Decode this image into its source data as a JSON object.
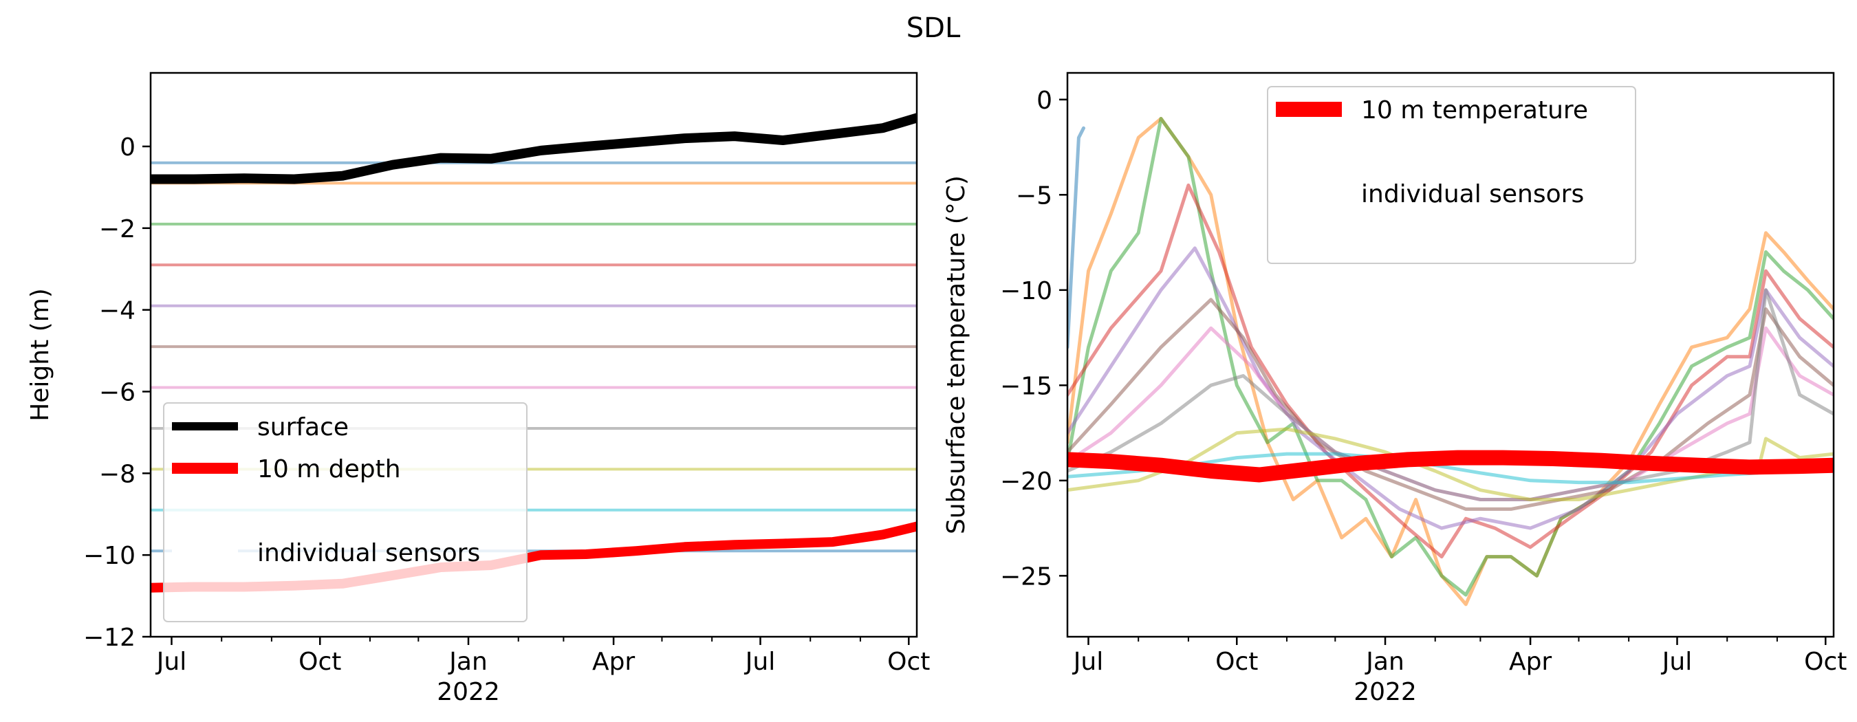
{
  "title": "SDL",
  "chart_data": [
    {
      "type": "line",
      "ylabel": "Height (m)",
      "xlabel": "",
      "x_axis": {
        "range": [
          "2021-06-18",
          "2022-10-06"
        ],
        "major_ticks": [
          {
            "date": "2021-07-01",
            "label": "Jul"
          },
          {
            "date": "2021-10-01",
            "label": "Oct"
          },
          {
            "date": "2022-01-01",
            "label": "Jan",
            "sublabel": "2022"
          },
          {
            "date": "2022-04-01",
            "label": "Apr"
          },
          {
            "date": "2022-07-01",
            "label": "Jul"
          },
          {
            "date": "2022-10-01",
            "label": "Oct"
          }
        ]
      },
      "ylim": [
        -12,
        1.8
      ],
      "yticks": [
        0,
        -2,
        -4,
        -6,
        -8,
        -10,
        -12
      ],
      "yticklabels": [
        "0",
        "−2",
        "−4",
        "−6",
        "−8",
        "−10",
        "−12"
      ],
      "legend": {
        "placement": "lower-left",
        "entries": [
          {
            "label": "surface",
            "color": "#000000"
          },
          {
            "label": "10 m depth",
            "color": "#ff0000"
          },
          {
            "label": "individual sensors",
            "color": "#ffffff"
          }
        ]
      },
      "series": [
        {
          "name": "surface",
          "color": "#000000",
          "x": [
            "2021-06-18",
            "2021-07-15",
            "2021-08-15",
            "2021-09-15",
            "2021-10-15",
            "2021-11-15",
            "2021-12-15",
            "2022-01-15",
            "2022-02-15",
            "2022-03-15",
            "2022-04-15",
            "2022-05-15",
            "2022-06-15",
            "2022-07-15",
            "2022-08-15",
            "2022-09-15",
            "2022-10-06"
          ],
          "y": [
            -0.8,
            -0.8,
            -0.78,
            -0.8,
            -0.72,
            -0.45,
            -0.28,
            -0.3,
            -0.1,
            0.0,
            0.1,
            0.2,
            0.25,
            0.15,
            0.3,
            0.45,
            0.7
          ]
        },
        {
          "name": "10 m depth",
          "color": "#ff0000",
          "x": [
            "2021-06-18",
            "2021-07-15",
            "2021-08-15",
            "2021-09-15",
            "2021-10-15",
            "2021-11-15",
            "2021-12-15",
            "2022-01-15",
            "2022-02-15",
            "2022-03-15",
            "2022-04-15",
            "2022-05-15",
            "2022-06-15",
            "2022-07-15",
            "2022-08-15",
            "2022-09-15",
            "2022-10-06"
          ],
          "y": [
            -10.8,
            -10.78,
            -10.78,
            -10.75,
            -10.7,
            -10.5,
            -10.3,
            -10.25,
            -10.0,
            -9.98,
            -9.9,
            -9.8,
            -9.75,
            -9.72,
            -9.68,
            -9.5,
            -9.3
          ]
        }
      ],
      "sensor_depths": [
        -0.4,
        -0.9,
        -1.9,
        -2.9,
        -3.9,
        -4.9,
        -5.9,
        -6.9,
        -7.9,
        -8.9,
        -9.9
      ],
      "sensor_colors": [
        "#1f77b4",
        "#ff7f0e",
        "#2ca02c",
        "#d62728",
        "#9467bd",
        "#8c564b",
        "#e377c2",
        "#7f7f7f",
        "#bcbd22",
        "#17becf",
        "#1f77b4"
      ]
    },
    {
      "type": "line",
      "ylabel": "Subsurface temperature (°C)",
      "xlabel": "",
      "x_axis": {
        "range": [
          "2021-06-18",
          "2022-10-06"
        ],
        "major_ticks": [
          {
            "date": "2021-07-01",
            "label": "Jul"
          },
          {
            "date": "2021-10-01",
            "label": "Oct"
          },
          {
            "date": "2022-01-01",
            "label": "Jan",
            "sublabel": "2022"
          },
          {
            "date": "2022-04-01",
            "label": "Apr"
          },
          {
            "date": "2022-07-01",
            "label": "Jul"
          },
          {
            "date": "2022-10-01",
            "label": "Oct"
          }
        ]
      },
      "ylim": [
        -28.2,
        1.4
      ],
      "yticks": [
        0,
        -5,
        -10,
        -15,
        -20,
        -25
      ],
      "yticklabels": [
        "0",
        "−5",
        "−10",
        "−15",
        "−20",
        "−25"
      ],
      "legend": {
        "placement": "upper-center",
        "entries": [
          {
            "label": "10 m temperature",
            "color": "#ff0000"
          },
          {
            "label": "individual sensors",
            "color": "#ffffff"
          }
        ]
      },
      "series": [
        {
          "name": "10 m temperature",
          "color": "#ff0000",
          "x": [
            "2021-06-18",
            "2021-07-15",
            "2021-08-15",
            "2021-09-15",
            "2021-10-15",
            "2021-11-15",
            "2021-12-15",
            "2022-01-15",
            "2022-02-15",
            "2022-03-15",
            "2022-04-15",
            "2022-05-15",
            "2022-06-15",
            "2022-07-15",
            "2022-08-15",
            "2022-09-15",
            "2022-10-06"
          ],
          "y": [
            -18.9,
            -19.0,
            -19.2,
            -19.5,
            -19.7,
            -19.4,
            -19.1,
            -18.9,
            -18.8,
            -18.8,
            -18.85,
            -18.95,
            -19.1,
            -19.2,
            -19.3,
            -19.25,
            -19.2
          ]
        },
        {
          "color": "#ff7f0e",
          "x": [
            "2021-06-18",
            "2021-07-01",
            "2021-07-15",
            "2021-08-01",
            "2021-08-15",
            "2021-09-01",
            "2021-09-15",
            "2021-10-01",
            "2021-10-20",
            "2021-11-05",
            "2021-11-20",
            "2021-12-05",
            "2021-12-20",
            "2022-01-05",
            "2022-01-20",
            "2022-02-05",
            "2022-02-20",
            "2022-03-05",
            "2022-03-20",
            "2022-04-05",
            "2022-04-20",
            "2022-05-10",
            "2022-06-01",
            "2022-06-20",
            "2022-07-10",
            "2022-08-01",
            "2022-08-15",
            "2022-08-25",
            "2022-09-05",
            "2022-09-20",
            "2022-10-06"
          ],
          "y": [
            -18,
            -9,
            -6,
            -2,
            -1,
            -3,
            -5,
            -12,
            -18,
            -21,
            -20,
            -23,
            -22,
            -24,
            -21,
            -25,
            -26.5,
            -24,
            -24,
            -25,
            -22,
            -21,
            -19,
            -16,
            -13,
            -12.5,
            -11,
            -7,
            -8,
            -9.5,
            -11
          ]
        },
        {
          "color": "#2ca02c",
          "x": [
            "2021-06-18",
            "2021-07-01",
            "2021-07-15",
            "2021-08-01",
            "2021-08-15",
            "2021-09-01",
            "2021-09-15",
            "2021-10-01",
            "2021-10-20",
            "2021-11-05",
            "2021-11-20",
            "2021-12-05",
            "2021-12-20",
            "2022-01-05",
            "2022-01-20",
            "2022-02-05",
            "2022-02-20",
            "2022-03-05",
            "2022-03-20",
            "2022-04-05",
            "2022-04-20",
            "2022-05-10",
            "2022-06-01",
            "2022-06-20",
            "2022-07-10",
            "2022-08-01",
            "2022-08-15",
            "2022-08-25",
            "2022-09-05",
            "2022-09-20",
            "2022-10-06"
          ],
          "y": [
            -19,
            -13,
            -9,
            -7,
            -1,
            -3,
            -9,
            -15,
            -18,
            -17,
            -20,
            -20,
            -21,
            -24,
            -23,
            -25,
            -26,
            -24,
            -24,
            -25,
            -22,
            -21,
            -19.5,
            -17,
            -14,
            -13,
            -12.5,
            -8,
            -9,
            -10,
            -11.5
          ]
        },
        {
          "color": "#d62728",
          "x": [
            "2021-06-18",
            "2021-07-15",
            "2021-08-15",
            "2021-09-01",
            "2021-09-20",
            "2021-10-10",
            "2021-11-01",
            "2021-11-25",
            "2021-12-20",
            "2022-01-15",
            "2022-02-05",
            "2022-02-20",
            "2022-03-10",
            "2022-04-01",
            "2022-04-25",
            "2022-05-20",
            "2022-06-15",
            "2022-07-10",
            "2022-08-01",
            "2022-08-15",
            "2022-08-25",
            "2022-09-15",
            "2022-10-06"
          ],
          "y": [
            -15.5,
            -12,
            -9,
            -4.5,
            -8,
            -13,
            -16,
            -18.5,
            -20.5,
            -22.5,
            -24,
            -22,
            -22.5,
            -23.5,
            -22,
            -20.5,
            -18.5,
            -15,
            -13.5,
            -13.5,
            -9,
            -11.5,
            -13
          ]
        },
        {
          "color": "#9467bd",
          "x": [
            "2021-06-18",
            "2021-07-15",
            "2021-08-15",
            "2021-09-05",
            "2021-09-25",
            "2021-10-15",
            "2021-11-10",
            "2021-12-10",
            "2022-01-10",
            "2022-02-05",
            "2022-03-01",
            "2022-04-01",
            "2022-05-01",
            "2022-06-01",
            "2022-07-01",
            "2022-08-01",
            "2022-08-15",
            "2022-08-25",
            "2022-09-15",
            "2022-10-06"
          ],
          "y": [
            -17.5,
            -14,
            -10,
            -7.8,
            -11,
            -14.5,
            -17.5,
            -19.5,
            -21.5,
            -22.5,
            -22,
            -22.5,
            -21.5,
            -19.5,
            -16.5,
            -14.5,
            -14,
            -10,
            -12.5,
            -14
          ]
        },
        {
          "color": "#8c564b",
          "x": [
            "2021-06-18",
            "2021-07-15",
            "2021-08-15",
            "2021-09-15",
            "2021-10-05",
            "2021-10-25",
            "2021-11-20",
            "2021-12-20",
            "2022-01-20",
            "2022-02-20",
            "2022-03-20",
            "2022-04-20",
            "2022-05-20",
            "2022-06-20",
            "2022-07-20",
            "2022-08-15",
            "2022-08-25",
            "2022-09-15",
            "2022-10-06"
          ],
          "y": [
            -18.5,
            -16,
            -13,
            -10.5,
            -12.5,
            -15.5,
            -18,
            -19.5,
            -20.5,
            -21.5,
            -21.5,
            -21,
            -20.5,
            -19,
            -17,
            -15.5,
            -11,
            -13.5,
            -15
          ]
        },
        {
          "color": "#e377c2",
          "x": [
            "2021-06-18",
            "2021-07-15",
            "2021-08-15",
            "2021-09-15",
            "2021-10-10",
            "2021-11-01",
            "2021-12-01",
            "2022-01-01",
            "2022-02-01",
            "2022-03-01",
            "2022-04-01",
            "2022-05-01",
            "2022-06-01",
            "2022-07-01",
            "2022-08-01",
            "2022-08-15",
            "2022-08-25",
            "2022-09-15",
            "2022-10-06"
          ],
          "y": [
            -19,
            -17.5,
            -15,
            -12,
            -14,
            -16.5,
            -18.5,
            -19.5,
            -20.5,
            -21,
            -21,
            -20.5,
            -20,
            -18.5,
            -17,
            -16.5,
            -12,
            -14.5,
            -15.5
          ]
        },
        {
          "color": "#7f7f7f",
          "x": [
            "2021-06-18",
            "2021-07-15",
            "2021-08-15",
            "2021-09-15",
            "2021-10-05",
            "2021-11-01",
            "2021-12-01",
            "2022-01-01",
            "2022-02-01",
            "2022-03-01",
            "2022-04-01",
            "2022-05-01",
            "2022-06-01",
            "2022-07-01",
            "2022-08-01",
            "2022-08-15",
            "2022-08-25",
            "2022-09-15",
            "2022-10-06"
          ],
          "y": [
            -19.5,
            -18.5,
            -17,
            -15,
            -14.5,
            -16.5,
            -18.5,
            -19.5,
            -20.5,
            -21,
            -21,
            -20.5,
            -20,
            -19.5,
            -18.5,
            -18,
            -10,
            -15.5,
            -16.5
          ]
        },
        {
          "color": "#bcbd22",
          "x": [
            "2021-06-18",
            "2021-08-01",
            "2021-09-01",
            "2021-10-01",
            "2021-11-01",
            "2021-12-01",
            "2022-01-01",
            "2022-02-01",
            "2022-03-01",
            "2022-04-01",
            "2022-05-01",
            "2022-06-01",
            "2022-07-01",
            "2022-08-01",
            "2022-08-20",
            "2022-08-25",
            "2022-09-15",
            "2022-10-06"
          ],
          "y": [
            -20.5,
            -20,
            -19,
            -17.5,
            -17.3,
            -17.8,
            -18.5,
            -19.5,
            -20.5,
            -21,
            -21,
            -20.5,
            -20,
            -19.5,
            -19.5,
            -17.8,
            -18.8,
            -18.6
          ]
        },
        {
          "color": "#17becf",
          "x": [
            "2021-06-18",
            "2021-08-01",
            "2021-09-01",
            "2021-10-01",
            "2021-11-01",
            "2021-12-01",
            "2022-01-01",
            "2022-02-01",
            "2022-03-01",
            "2022-04-01",
            "2022-05-01",
            "2022-06-01",
            "2022-07-01",
            "2022-08-01",
            "2022-08-20",
            "2022-08-25",
            "2022-09-15",
            "2022-10-06"
          ],
          "y": [
            -19.8,
            -19.5,
            -19.2,
            -18.8,
            -18.6,
            -18.6,
            -18.8,
            -19.2,
            -19.6,
            -20,
            -20.1,
            -20.1,
            -19.9,
            -19.7,
            -19.6,
            -19.0,
            -19.3,
            -19.2
          ]
        },
        {
          "color": "#1f77b4",
          "x": [
            "2021-06-18",
            "2021-06-25",
            "2021-06-28"
          ],
          "y": [
            -13,
            -2,
            -1.5
          ]
        }
      ]
    }
  ]
}
